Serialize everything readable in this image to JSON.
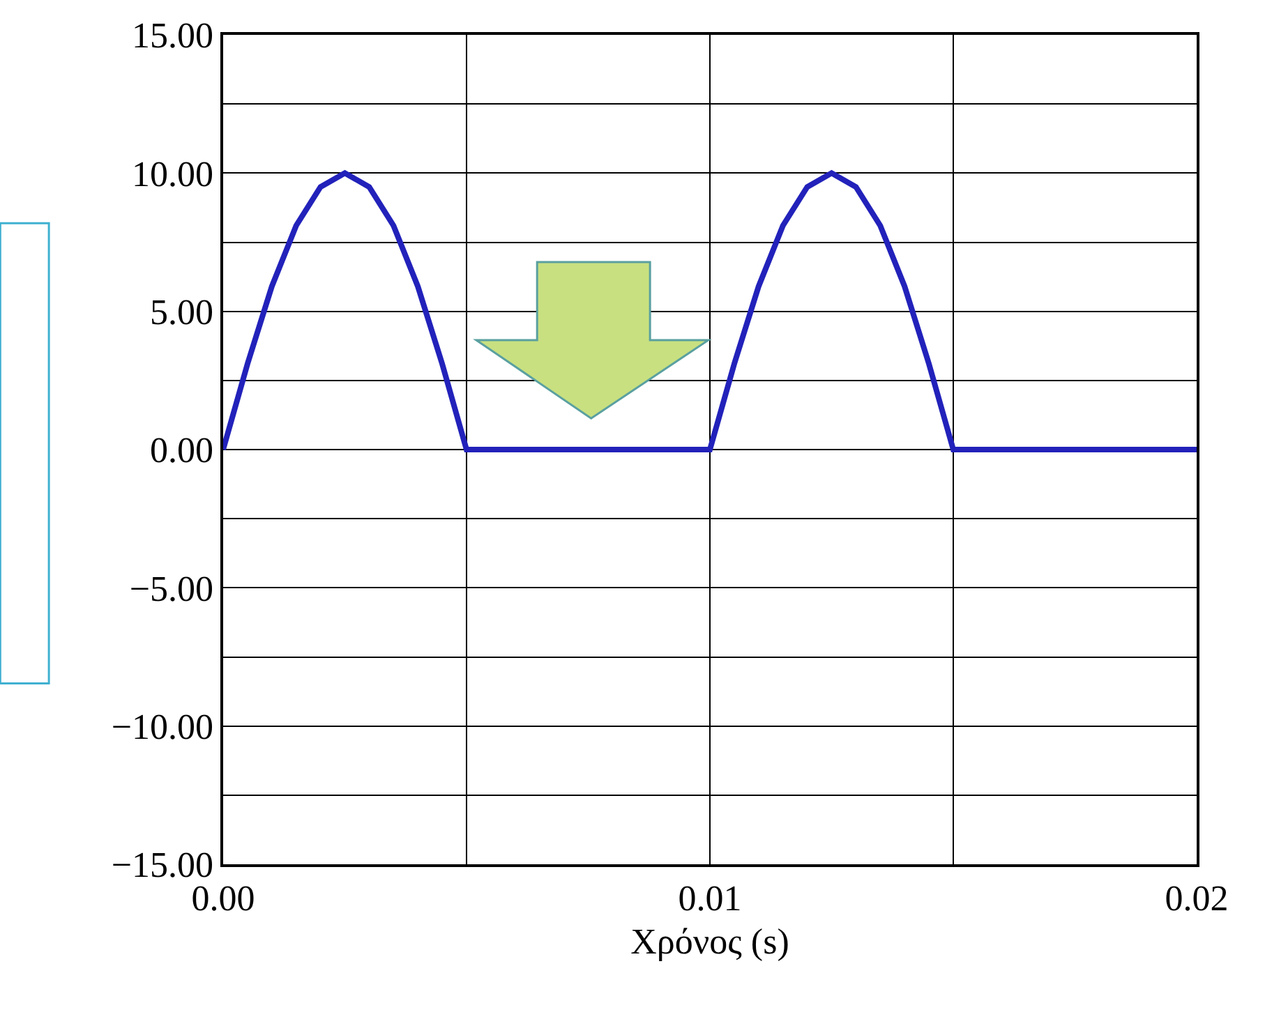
{
  "chart_data": {
    "type": "line",
    "xlabel": "Χρόνος (s)",
    "x": [
      0,
      0.0005,
      0.001,
      0.0015,
      0.002,
      0.0025,
      0.003,
      0.0035,
      0.004,
      0.0045,
      0.005,
      0.01,
      0.0105,
      0.011,
      0.0115,
      0.012,
      0.0125,
      0.013,
      0.0135,
      0.014,
      0.0145,
      0.015,
      0.02
    ],
    "series": [
      {
        "color": "#2222bb",
        "values": [
          0,
          3.1,
          5.9,
          8.1,
          9.5,
          10,
          9.5,
          8.1,
          5.9,
          3.1,
          0,
          0,
          3.1,
          5.9,
          8.1,
          9.5,
          10,
          9.5,
          8.1,
          5.9,
          3.1,
          0,
          0
        ]
      }
    ],
    "xlim": [
      0,
      0.02
    ],
    "ylim": [
      -15,
      15
    ],
    "xticks": [
      {
        "value": 0,
        "label": "0.00"
      },
      {
        "value": 0.005,
        "label": null
      },
      {
        "value": 0.01,
        "label": "0.01"
      },
      {
        "value": 0.015,
        "label": null
      },
      {
        "value": 0.02,
        "label": "0.02"
      }
    ],
    "yticks": [
      {
        "value": -15,
        "label": "−15.00"
      },
      {
        "value": -12.5,
        "label": null
      },
      {
        "value": -10,
        "label": "−10.00"
      },
      {
        "value": -7.5,
        "label": null
      },
      {
        "value": -5,
        "label": "−5.00"
      },
      {
        "value": -2.5,
        "label": null
      },
      {
        "value": 0,
        "label": "0.00"
      },
      {
        "value": 2.5,
        "label": null
      },
      {
        "value": 5,
        "label": "5.00"
      },
      {
        "value": 7.5,
        "label": null
      },
      {
        "value": 10,
        "label": "10.00"
      },
      {
        "value": 12.5,
        "label": null
      },
      {
        "value": 15,
        "label": "15.00"
      }
    ],
    "grid": true,
    "marker": "none",
    "line_style": "solid"
  }
}
